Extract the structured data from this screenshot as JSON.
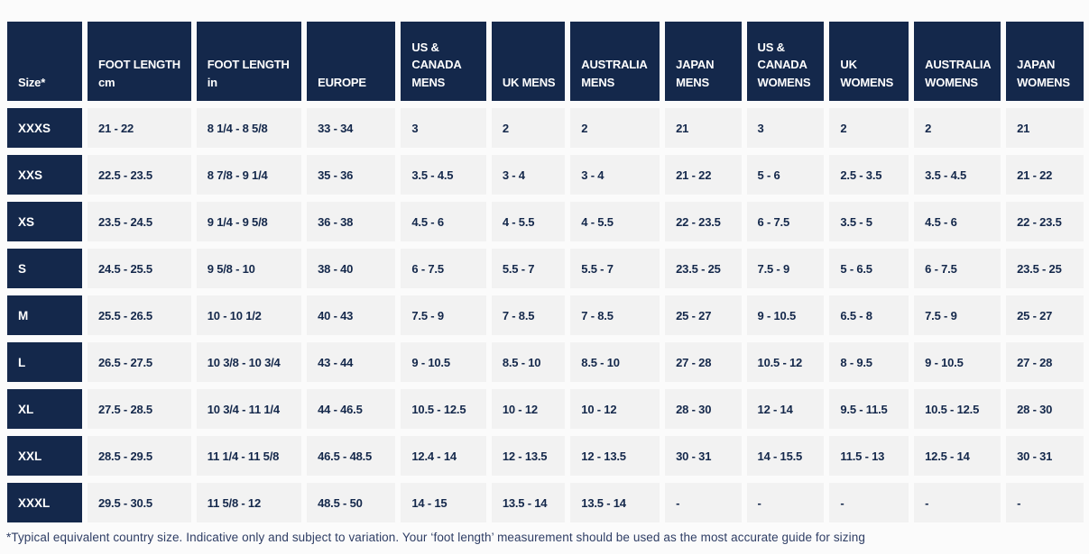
{
  "theme": {
    "navy": "#14284b",
    "cell_background": "#f2f2f2",
    "page_background": "#fbfbfb",
    "header_text": "#ffffff",
    "cell_text": "#14284b",
    "footnote_text": "#2e3d64"
  },
  "table": {
    "columns": [
      {
        "label": "Size*"
      },
      {
        "label": "FOOT LENGTH cm"
      },
      {
        "label": "FOOT LENGTH in"
      },
      {
        "label": "EUROPE"
      },
      {
        "label": "US & CANADA MENS"
      },
      {
        "label": "UK MENS"
      },
      {
        "label": "AUSTRALIA MENS"
      },
      {
        "label": "JAPAN MENS"
      },
      {
        "label": "US & CANADA WOMENS"
      },
      {
        "label": "UK WOMENS"
      },
      {
        "label": "AUSTRALIA WOMENS"
      },
      {
        "label": "JAPAN WOMENS"
      }
    ],
    "rows": [
      {
        "size": "XXXS",
        "values": [
          "21 - 22",
          "8 1/4 - 8 5/8",
          "33 - 34",
          "3",
          "2",
          "2",
          "21",
          "3",
          "2",
          "2",
          "21"
        ]
      },
      {
        "size": "XXS",
        "values": [
          "22.5 - 23.5",
          "8 7/8 - 9 1/4",
          "35 - 36",
          "3.5 - 4.5",
          "3 - 4",
          "3 - 4",
          "21 - 22",
          "5 - 6",
          "2.5 - 3.5",
          "3.5 - 4.5",
          "21 - 22"
        ]
      },
      {
        "size": "XS",
        "values": [
          "23.5 - 24.5",
          "9 1/4 - 9 5/8",
          "36 - 38",
          "4.5 - 6",
          "4 - 5.5",
          "4 - 5.5",
          "22 - 23.5",
          "6 - 7.5",
          "3.5 - 5",
          "4.5 - 6",
          "22 - 23.5"
        ]
      },
      {
        "size": "S",
        "values": [
          "24.5 - 25.5",
          "9 5/8 - 10",
          "38 - 40",
          "6 - 7.5",
          "5.5 - 7",
          "5.5 - 7",
          "23.5 - 25",
          "7.5 - 9",
          "5 - 6.5",
          "6 - 7.5",
          "23.5 - 25"
        ]
      },
      {
        "size": "M",
        "values": [
          "25.5 - 26.5",
          "10 - 10 1/2",
          "40 - 43",
          "7.5 - 9",
          "7 - 8.5",
          "7 - 8.5",
          "25 - 27",
          "9 - 10.5",
          "6.5 - 8",
          "7.5 - 9",
          "25 - 27"
        ]
      },
      {
        "size": "L",
        "values": [
          "26.5 - 27.5",
          "10 3/8 - 10 3/4",
          "43 - 44",
          "9 - 10.5",
          "8.5 - 10",
          "8.5 - 10",
          "27 - 28",
          "10.5 - 12",
          "8 - 9.5",
          "9 - 10.5",
          "27 - 28"
        ]
      },
      {
        "size": "XL",
        "values": [
          "27.5 - 28.5",
          "10 3/4 - 11 1/4",
          "44 - 46.5",
          "10.5 - 12.5",
          "10 - 12",
          "10 - 12",
          "28 - 30",
          "12 - 14",
          "9.5 - 11.5",
          "10.5 - 12.5",
          "28 - 30"
        ]
      },
      {
        "size": "XXL",
        "values": [
          "28.5 - 29.5",
          "11 1/4 - 11 5/8",
          "46.5 - 48.5",
          "12.4 - 14",
          "12 - 13.5",
          "12 - 13.5",
          "30 - 31",
          "14 - 15.5",
          "11.5 - 13",
          "12.5 - 14",
          "30 - 31"
        ]
      },
      {
        "size": "XXXL",
        "values": [
          "29.5 - 30.5",
          "11 5/8 - 12",
          "48.5 - 50",
          "14 - 15",
          "13.5 - 14",
          "13.5 - 14",
          "-",
          "-",
          "-",
          "-",
          "-"
        ]
      }
    ]
  },
  "footnote": "*Typical equivalent country size. Indicative only and subject to variation. Your ‘foot length’ measurement should be used as the most accurate guide for sizing"
}
